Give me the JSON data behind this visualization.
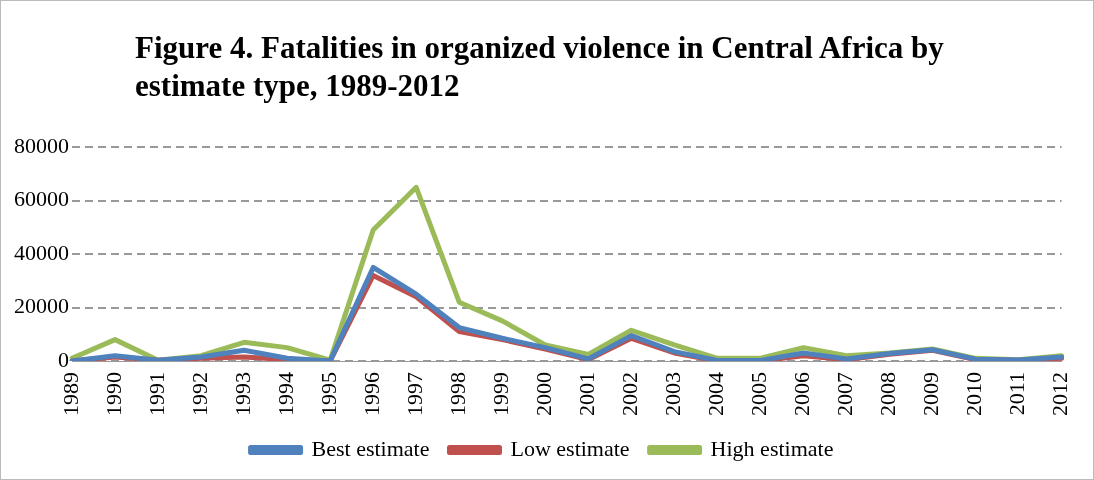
{
  "chart_data": {
    "type": "line",
    "title": "Figure 4. Fatalities in organized violence in Central Africa by estimate type, 1989-2012",
    "categories": [
      "1989",
      "1990",
      "1991",
      "1992",
      "1993",
      "1994",
      "1995",
      "1996",
      "1997",
      "1998",
      "1999",
      "2000",
      "2001",
      "2002",
      "2003",
      "2004",
      "2005",
      "2006",
      "2007",
      "2008",
      "2009",
      "2010",
      "2011",
      "2012"
    ],
    "series": [
      {
        "name": "Best estimate",
        "color": "#4f81bd",
        "values": [
          0,
          2000,
          300,
          1500,
          4000,
          1000,
          0,
          35000,
          25000,
          12500,
          8500,
          5000,
          800,
          9500,
          3500,
          200,
          200,
          3000,
          800,
          2800,
          4200,
          700,
          400,
          1500
        ]
      },
      {
        "name": "Low estimate",
        "color": "#c0504d",
        "values": [
          0,
          1500,
          300,
          1000,
          1500,
          500,
          0,
          32000,
          24000,
          11000,
          8000,
          4500,
          500,
          8500,
          3000,
          0,
          0,
          2000,
          500,
          2500,
          4000,
          500,
          300,
          1000
        ]
      },
      {
        "name": "High estimate",
        "color": "#9bbb59",
        "values": [
          1000,
          8000,
          300,
          2000,
          7000,
          5000,
          300,
          49000,
          65000,
          22000,
          15000,
          6000,
          2500,
          11500,
          6000,
          1000,
          1000,
          5000,
          2000,
          3000,
          4500,
          1000,
          500,
          2000
        ]
      }
    ],
    "ylim": [
      0,
      80000
    ],
    "yticks": [
      0,
      20000,
      40000,
      60000,
      80000
    ],
    "grid": "y",
    "legend": "bottom",
    "marker": "none",
    "line_style": "solid"
  }
}
